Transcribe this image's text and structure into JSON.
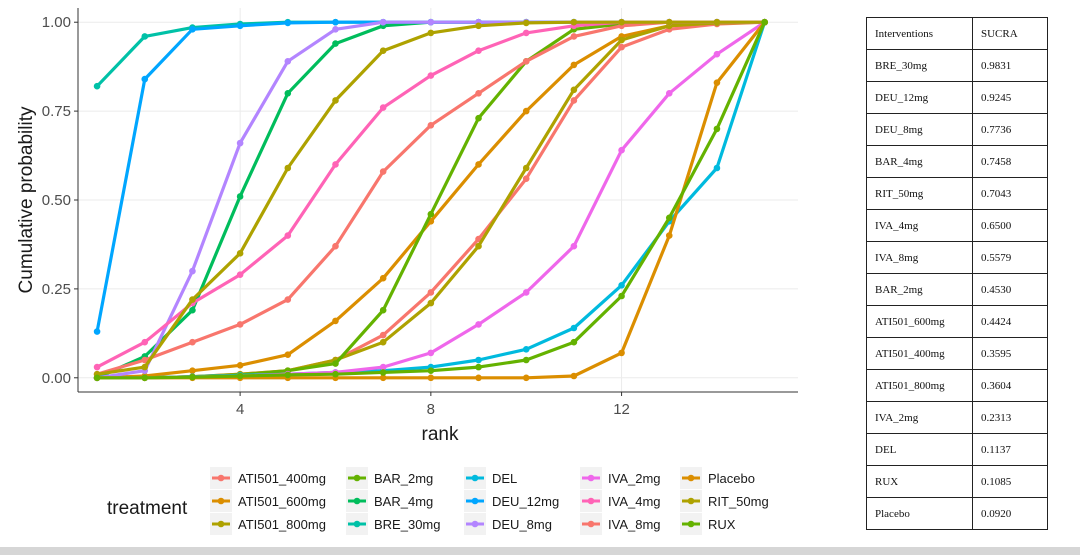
{
  "chart_data": {
    "type": "line",
    "xlabel": "rank",
    "ylabel": "Cumulative probability",
    "xlim": [
      0.6,
      15.7
    ],
    "ylim": [
      -0.04,
      1.04
    ],
    "xticks": [
      4,
      8,
      12
    ],
    "yticks": [
      "0.00",
      "0.25",
      "0.50",
      "0.75",
      "1.00"
    ],
    "legend_title": "treatment",
    "legend_position": "bottom",
    "x": [
      1,
      2,
      3,
      4,
      5,
      6,
      7,
      8,
      9,
      10,
      11,
      12,
      13,
      14,
      15
    ],
    "series": [
      {
        "name": "ATI501_400mg",
        "color": "#F8766D",
        "values": [
          0,
          0,
          0.003,
          0.01,
          0.02,
          0.05,
          0.12,
          0.24,
          0.39,
          0.56,
          0.78,
          0.93,
          0.98,
          0.995,
          1.0
        ]
      },
      {
        "name": "ATI501_600mg",
        "color": "#DB8E00",
        "values": [
          0,
          0.005,
          0.02,
          0.035,
          0.065,
          0.16,
          0.28,
          0.44,
          0.6,
          0.75,
          0.88,
          0.96,
          0.99,
          0.998,
          1.0
        ]
      },
      {
        "name": "ATI501_800mg",
        "color": "#AEA200",
        "values": [
          0,
          0,
          0.003,
          0.01,
          0.02,
          0.05,
          0.1,
          0.21,
          0.37,
          0.59,
          0.81,
          0.95,
          0.99,
          0.998,
          1.0
        ]
      },
      {
        "name": "BAR_2mg",
        "color": "#64B200",
        "values": [
          0,
          0,
          0.003,
          0.008,
          0.02,
          0.04,
          0.19,
          0.46,
          0.73,
          0.89,
          0.98,
          0.995,
          1.0,
          1.0,
          1.0
        ]
      },
      {
        "name": "BAR_4mg",
        "color": "#00BD5C",
        "values": [
          0,
          0.06,
          0.19,
          0.51,
          0.8,
          0.94,
          0.99,
          1.0,
          1.0,
          1.0,
          1.0,
          1.0,
          1.0,
          1.0,
          1.0
        ]
      },
      {
        "name": "BRE_30mg",
        "color": "#00C1A7",
        "values": [
          0.82,
          0.96,
          0.985,
          0.995,
          1.0,
          1.0,
          1.0,
          1.0,
          1.0,
          1.0,
          1.0,
          1.0,
          1.0,
          1.0,
          1.0
        ]
      },
      {
        "name": "DEL",
        "color": "#00BADE",
        "values": [
          0,
          0,
          0.003,
          0.007,
          0.01,
          0.015,
          0.02,
          0.03,
          0.05,
          0.08,
          0.14,
          0.26,
          0.44,
          0.59,
          1.0
        ]
      },
      {
        "name": "DEU_12mg",
        "color": "#00A6FF",
        "values": [
          0.13,
          0.84,
          0.98,
          0.99,
          0.998,
          1.0,
          1.0,
          1.0,
          1.0,
          1.0,
          1.0,
          1.0,
          1.0,
          1.0,
          1.0
        ]
      },
      {
        "name": "DEU_8mg",
        "color": "#B385FF",
        "values": [
          0,
          0.02,
          0.3,
          0.66,
          0.89,
          0.98,
          1.0,
          1.0,
          1.0,
          1.0,
          1.0,
          1.0,
          1.0,
          1.0,
          1.0
        ]
      },
      {
        "name": "IVA_2mg",
        "color": "#EF67EB",
        "values": [
          0,
          0,
          0.002,
          0.005,
          0.01,
          0.015,
          0.03,
          0.07,
          0.15,
          0.24,
          0.37,
          0.64,
          0.8,
          0.91,
          1.0
        ]
      },
      {
        "name": "IVA_4mg",
        "color": "#FF63B6",
        "values": [
          0.03,
          0.1,
          0.21,
          0.29,
          0.4,
          0.6,
          0.76,
          0.85,
          0.92,
          0.97,
          0.99,
          1.0,
          1.0,
          1.0,
          1.0
        ]
      },
      {
        "name": "IVA_8mg",
        "color": "#F8766D",
        "values": [
          0.01,
          0.05,
          0.1,
          0.15,
          0.22,
          0.37,
          0.58,
          0.71,
          0.8,
          0.89,
          0.96,
          0.99,
          1.0,
          1.0,
          1.0
        ]
      },
      {
        "name": "Placebo",
        "color": "#DB8E00",
        "values": [
          0,
          0,
          0,
          0,
          0,
          0,
          0,
          0,
          0,
          0,
          0.005,
          0.07,
          0.4,
          0.83,
          1.0
        ]
      },
      {
        "name": "RIT_50mg",
        "color": "#AEA200",
        "values": [
          0.01,
          0.03,
          0.22,
          0.35,
          0.59,
          0.78,
          0.92,
          0.97,
          0.99,
          0.998,
          1.0,
          1.0,
          1.0,
          1.0,
          1.0
        ]
      },
      {
        "name": "RUX",
        "color": "#64B200",
        "values": [
          0,
          0,
          0.002,
          0.005,
          0.008,
          0.01,
          0.015,
          0.02,
          0.03,
          0.05,
          0.1,
          0.23,
          0.45,
          0.7,
          1.0
        ]
      }
    ]
  },
  "sucra_table": {
    "headers": [
      "Interventions",
      "SUCRA"
    ],
    "rows": [
      [
        "BRE_30mg",
        "0.9831"
      ],
      [
        "DEU_12mg",
        "0.9245"
      ],
      [
        "DEU_8mg",
        "0.7736"
      ],
      [
        "BAR_4mg",
        "0.7458"
      ],
      [
        "RIT_50mg",
        "0.7043"
      ],
      [
        "IVA_4mg",
        "0.6500"
      ],
      [
        "IVA_8mg",
        "0.5579"
      ],
      [
        "BAR_2mg",
        "0.4530"
      ],
      [
        "ATI501_600mg",
        "0.4424"
      ],
      [
        "ATI501_400mg",
        "0.3595"
      ],
      [
        "ATI501_800mg",
        "0.3604"
      ],
      [
        "IVA_2mg",
        "0.2313"
      ],
      [
        "DEL",
        "0.1137"
      ],
      [
        "RUX",
        "0.1085"
      ],
      [
        "Placebo",
        "0.0920"
      ]
    ]
  }
}
